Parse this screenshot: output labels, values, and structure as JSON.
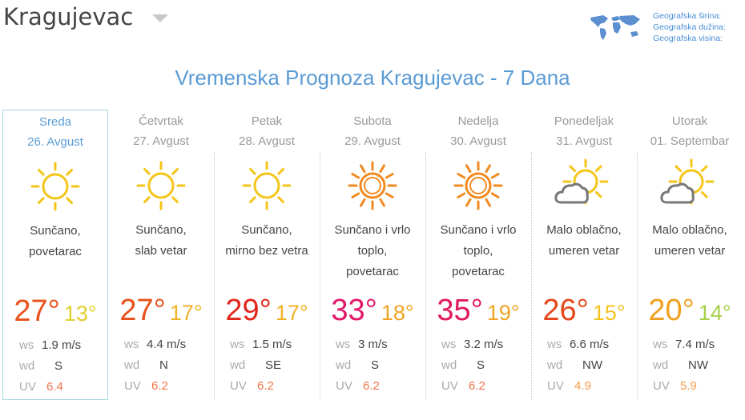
{
  "header": {
    "city": "Kragujevac",
    "geo_labels": [
      "Geografska širina:",
      "Geografska dužina:",
      "Geografska visina:"
    ]
  },
  "title": "Vremenska Prognoza Kragujevac - 7 Dana",
  "labels": {
    "ws": "ws",
    "wd": "wd",
    "uv": "UV"
  },
  "days": [
    {
      "day": "Sreda",
      "date": "26. Avgust",
      "icon": "sun-icon",
      "desc": [
        "Sunčano,",
        "povetarac"
      ],
      "high": "27°",
      "low": "13°",
      "high_color": "#e8501a",
      "low_color": "#e2cf2c",
      "ws": "1.9 m/s",
      "wd": "S",
      "uv": "6.4",
      "uv_color": "#f0744a",
      "selected": true
    },
    {
      "day": "Četvrtak",
      "date": "27. Avgust",
      "icon": "sun-icon",
      "desc": [
        "Sunčano,",
        "slab vetar"
      ],
      "high": "27°",
      "low": "17°",
      "high_color": "#e8501a",
      "low_color": "#f0b224",
      "ws": "4.4 m/s",
      "wd": "N",
      "uv": "6.2",
      "uv_color": "#f0744a"
    },
    {
      "day": "Petak",
      "date": "28. Avgust",
      "icon": "sun-icon",
      "desc": [
        "Sunčano,",
        "mirno bez vetra"
      ],
      "high": "29°",
      "low": "17°",
      "high_color": "#e3261b",
      "low_color": "#f0b224",
      "ws": "1.5 m/s",
      "wd": "SE",
      "uv": "6.2",
      "uv_color": "#f0744a"
    },
    {
      "day": "Subota",
      "date": "29. Avgust",
      "icon": "hot-sun-icon",
      "desc": [
        "Sunčano i vrlo",
        "toplo,",
        "povetarac"
      ],
      "high": "33°",
      "low": "18°",
      "high_color": "#e3176a",
      "low_color": "#f0a424",
      "ws": "3 m/s",
      "wd": "S",
      "uv": "6.2",
      "uv_color": "#f0744a"
    },
    {
      "day": "Nedelja",
      "date": "30. Avgust",
      "icon": "hot-sun-icon",
      "desc": [
        "Sunčano i vrlo",
        "toplo,",
        "povetarac"
      ],
      "high": "35°",
      "low": "19°",
      "high_color": "#e01a5c",
      "low_color": "#f0a424",
      "ws": "3.2 m/s",
      "wd": "S",
      "uv": "6.2",
      "uv_color": "#f0744a"
    },
    {
      "day": "Ponedeljak",
      "date": "31. Avgust",
      "icon": "partly-cloudy-icon",
      "desc": [
        "Malo oblačno,",
        "umeren vetar"
      ],
      "high": "26°",
      "low": "15°",
      "high_color": "#e5471a",
      "low_color": "#f2c422",
      "ws": "6.6 m/s",
      "wd": "NW",
      "uv": "4.9",
      "uv_color": "#f5994a"
    },
    {
      "day": "Utorak",
      "date": "01. Septembar",
      "icon": "partly-cloudy-icon",
      "desc": [
        "Malo oblačno,",
        "umeren vetar"
      ],
      "high": "20°",
      "low": "14°",
      "high_color": "#f0a01e",
      "low_color": "#a8d04a",
      "ws": "7.4 m/s",
      "wd": "NW",
      "uv": "5.9",
      "uv_color": "#f5994a"
    }
  ]
}
